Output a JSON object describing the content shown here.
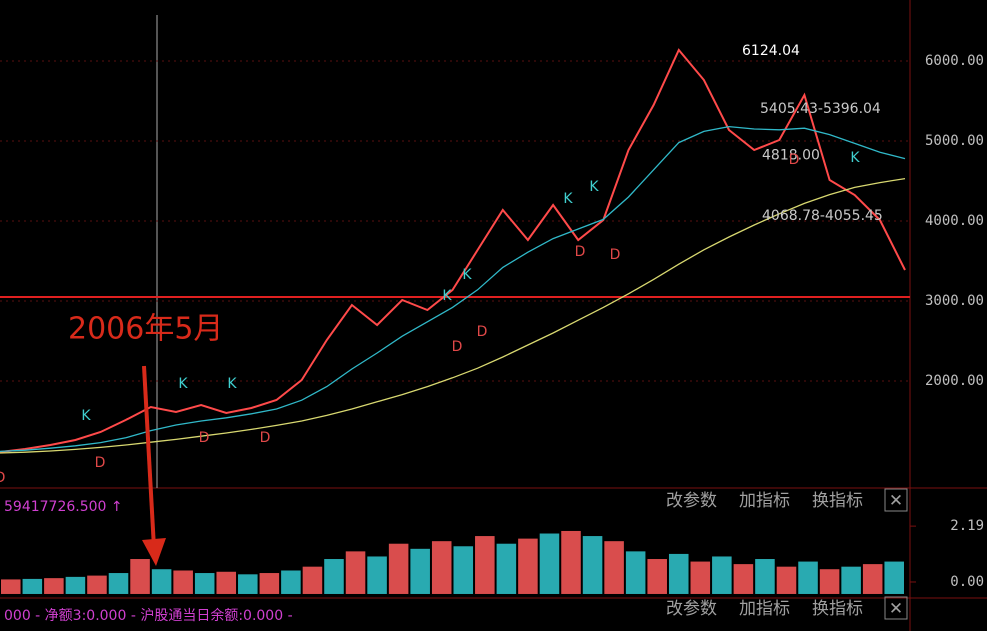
{
  "chart_data": {
    "type": "line",
    "ylim": [
      662.5,
      6762.5
    ],
    "yticks": [
      {
        "value": 2000,
        "label": "2000.00"
      },
      {
        "value": 3000,
        "label": "3000.00"
      },
      {
        "value": 4000,
        "label": "4000.00"
      },
      {
        "value": 5000,
        "label": "5000.00"
      },
      {
        "value": 6000,
        "label": "6000.00"
      }
    ],
    "grid": true,
    "series": [
      {
        "color": "#ff4a4a",
        "values": [
          1112,
          1150,
          1200,
          1262,
          1362,
          1512,
          1675,
          1612,
          1700,
          1600,
          1662,
          1762,
          2012,
          2512,
          2950,
          2700,
          3012,
          2887,
          3137,
          3637,
          4137,
          3762,
          4200,
          3762,
          4012,
          4887,
          5450,
          6137,
          5762,
          5137,
          4887,
          5012,
          5575,
          4512,
          4325,
          4012,
          3387
        ]
      },
      {
        "color": "#d8d870",
        "values": [
          1100,
          1110,
          1125,
          1145,
          1170,
          1200,
          1235,
          1270,
          1310,
          1350,
          1395,
          1445,
          1500,
          1570,
          1650,
          1740,
          1830,
          1930,
          2040,
          2160,
          2300,
          2450,
          2600,
          2760,
          2920,
          3090,
          3270,
          3460,
          3640,
          3800,
          3950,
          4090,
          4220,
          4330,
          4420,
          4480,
          4530
        ]
      },
      {
        "color": "#30b8c8",
        "values": [
          1120,
          1135,
          1160,
          1190,
          1230,
          1290,
          1380,
          1450,
          1500,
          1540,
          1590,
          1650,
          1760,
          1930,
          2150,
          2350,
          2560,
          2740,
          2920,
          3140,
          3420,
          3610,
          3780,
          3900,
          4020,
          4300,
          4640,
          4980,
          5120,
          5180,
          5150,
          5140,
          5160,
          5080,
          4970,
          4860,
          4780
        ]
      }
    ],
    "reference": {
      "value": 3050,
      "color": "#e02020"
    },
    "annotation": "2006年5月",
    "price_labels": [
      {
        "label": "6124.04",
        "value": 6124.04
      },
      {
        "label": "5405.43-5396.04",
        "value": 5400
      },
      {
        "label": "4818.00",
        "value": 4818
      },
      {
        "label": "4068.78-4055.45",
        "value": 4060
      }
    ],
    "signals": [
      "K",
      "K",
      "K",
      "K",
      "K",
      "K",
      "K",
      "K",
      "D",
      "D",
      "D",
      "D",
      "D",
      "D",
      "D",
      "D",
      "D"
    ],
    "volume": {
      "ylim": [
        -0.55,
        2.43
      ],
      "yticks": [
        {
          "value": 0,
          "label": "0.00"
        },
        2.19
      ],
      "colors": [
        "#ff5a5a",
        "#30c8d0"
      ],
      "values": [
        0.1,
        0.12,
        0.15,
        0.2,
        0.25,
        0.35,
        0.9,
        0.5,
        0.45,
        0.35,
        0.4,
        0.3,
        0.35,
        0.45,
        0.6,
        0.9,
        1.2,
        1.0,
        1.5,
        1.3,
        1.6,
        1.4,
        1.8,
        1.5,
        1.7,
        1.9,
        2.0,
        1.8,
        1.6,
        1.2,
        0.9,
        1.1,
        0.8,
        1.0,
        0.7,
        0.9,
        0.6,
        0.8,
        0.5,
        0.6,
        0.7,
        0.8
      ]
    },
    "indicator_line": "59417726.500 ↑",
    "status_line": "000 - 净额3:0.000 - 沪股通当日余额:0.000 -",
    "buttons": [
      "改参数",
      "加指标",
      "换指标",
      "✕"
    ]
  }
}
